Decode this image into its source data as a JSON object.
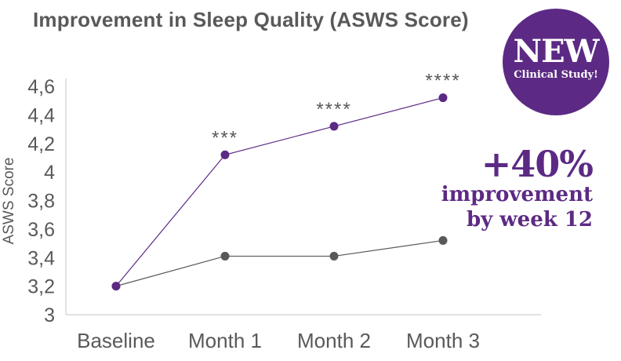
{
  "colors": {
    "accent": "#5c2a84",
    "baseline_series": "#595959",
    "axis_line": "#d9d9d9",
    "text": "#595959"
  },
  "badge": {
    "big": "NEW",
    "small": "Clinical Study!"
  },
  "callout": {
    "big": "+40%",
    "line1": "improvement",
    "line2": "by week 12"
  },
  "chart_data": {
    "type": "line",
    "title": "Improvement in Sleep Quality (ASWS Score)",
    "xlabel": "",
    "ylabel": "ASWS Score",
    "categories": [
      "Baseline",
      "Month 1",
      "Month 2",
      "Month 3"
    ],
    "ylim": [
      3,
      4.6
    ],
    "yticks": [
      3,
      3.2,
      3.4,
      3.6,
      3.8,
      4,
      4.2,
      4.4,
      4.6
    ],
    "ytick_labels": [
      "3",
      "3,2",
      "3,4",
      "3,6",
      "3,8",
      "4",
      "4,2",
      "4,4",
      "4,6"
    ],
    "grid": false,
    "series": [
      {
        "values": [
          3.2,
          4.12,
          4.32,
          4.52
        ],
        "color": "#5c2a84",
        "annotations": [
          "",
          "***",
          "****",
          "****"
        ]
      },
      {
        "values": [
          3.2,
          3.41,
          3.41,
          3.52
        ],
        "color": "#595959",
        "annotations": [
          "",
          "",
          "",
          ""
        ]
      }
    ]
  }
}
